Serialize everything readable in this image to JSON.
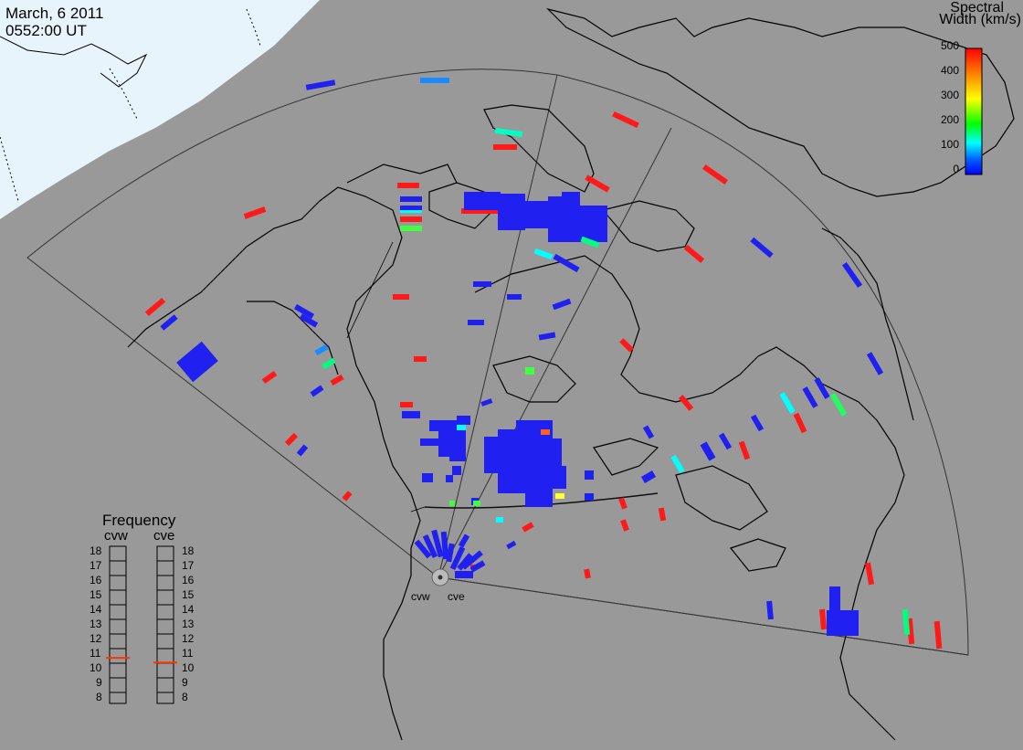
{
  "header": {
    "date": "March, 6 2011",
    "time": "0552:00 UT"
  },
  "colorbar": {
    "title_line1": "Spectral",
    "title_line2": "Width (km/s)",
    "ticks": [
      "500",
      "400",
      "300",
      "200",
      "100",
      "0"
    ],
    "colors": [
      "#ff0000",
      "#ff8000",
      "#ffff00",
      "#00ff00",
      "#00ffff",
      "#0040ff",
      "#0000ff"
    ]
  },
  "frequency": {
    "title": "Frequency",
    "radars": [
      "cvw",
      "cve"
    ],
    "ticks": [
      "18",
      "17",
      "16",
      "15",
      "14",
      "13",
      "12",
      "11",
      "10",
      "9",
      "8"
    ],
    "cvw_marker": 10.9,
    "cve_marker": 10.6,
    "marker_color": "#ff3300"
  },
  "radar_labels": [
    "cvw",
    "cve"
  ],
  "colors": {
    "ocean": "#999999",
    "terminator": "#e8f4fb",
    "low_width": "#2020f0",
    "high_width": "#ff1a1a"
  }
}
